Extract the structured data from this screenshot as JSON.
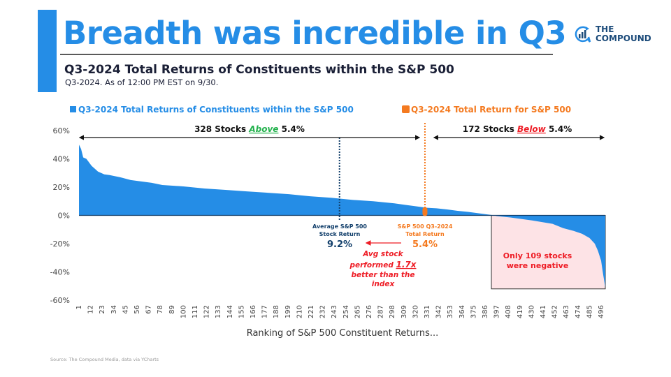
{
  "header": {
    "title": "Breadth was incredible in Q3",
    "subtitle": "Q3-2024 Total Returns of Constituents within the S&P 500",
    "subsubtitle": "Q3-2024. As of 12:00 PM EST on 9/30.",
    "logo_line1": "THE",
    "logo_line2": "COMPOUND"
  },
  "footer": {
    "source": "Source: The Compound Media, data via YCharts"
  },
  "colors": {
    "primary": "#258DE6",
    "orange": "#F47A20",
    "red": "#EE1C25",
    "green": "#22B14C",
    "navy": "#123F6B",
    "negative_box": "#FDE3E6"
  },
  "chart_data": {
    "type": "area",
    "title": "Q3-2024 Total Returns of Constituents within the S&P 500",
    "legend": [
      {
        "label": "Q3-2024 Total Returns of Constituents within the S&P 500",
        "color": "#258DE6"
      },
      {
        "label": "Q3-2024 Total Return for S&P 500",
        "color": "#F47A20"
      }
    ],
    "legend_position": "top",
    "xlabel": "Ranking of S&P 500 Constituent Returns...",
    "ylabel": "",
    "xlim": [
      1,
      500
    ],
    "ylim": [
      -60,
      60
    ],
    "y_ticks": [
      60,
      40,
      20,
      0,
      -20,
      -40,
      -60
    ],
    "y_tick_labels": [
      "60%",
      "40%",
      "20%",
      "0%",
      "-20%",
      "-40%",
      "-60%"
    ],
    "x_tick_labels": [
      "1",
      "12",
      "23",
      "34",
      "45",
      "56",
      "67",
      "78",
      "89",
      "100",
      "111",
      "122",
      "133",
      "144",
      "155",
      "166",
      "177",
      "188",
      "199",
      "210",
      "221",
      "232",
      "243",
      "254",
      "265",
      "276",
      "287",
      "298",
      "309",
      "320",
      "331",
      "342",
      "353",
      "364",
      "375",
      "386",
      "397",
      "408",
      "419",
      "430",
      "441",
      "452",
      "463",
      "474",
      "485",
      "496"
    ],
    "series": [
      {
        "name": "Q3-2024 Total Returns of Constituents within the S&P 500",
        "x": [
          1,
          3,
          5,
          8,
          10,
          13,
          16,
          19,
          22,
          25,
          30,
          40,
          50,
          60,
          70,
          80,
          90,
          100,
          120,
          140,
          160,
          180,
          200,
          220,
          240,
          260,
          280,
          300,
          310,
          320,
          331,
          340,
          350,
          360,
          370,
          380,
          390,
          395,
          397,
          410,
          430,
          450,
          460,
          470,
          478,
          485,
          490,
          493,
          496,
          498,
          500
        ],
        "values": [
          50,
          47,
          41,
          40,
          38,
          35,
          33,
          31,
          30,
          29,
          28.5,
          27,
          25,
          24,
          23,
          21.5,
          21,
          20.5,
          19,
          18,
          17,
          16,
          15,
          13.5,
          12.5,
          11,
          10,
          8.5,
          7.5,
          6.5,
          5.4,
          5,
          4.2,
          3.2,
          2.5,
          1.5,
          0.5,
          0,
          -0.5,
          -1.5,
          -3.5,
          -6,
          -9,
          -11,
          -13,
          -16,
          -20,
          -25,
          -32,
          -42,
          -51
        ]
      }
    ],
    "reference_lines": [
      {
        "name": "Average S&P 500 Stock Return",
        "value_pct": 9.2,
        "rank": 248,
        "color": "#123F6B"
      },
      {
        "name": "S&P 500 Q3-2024 Total Return",
        "value_pct": 5.4,
        "rank": 329,
        "color": "#F47A20"
      }
    ],
    "annotations": {
      "above": {
        "count_text": "328 Stocks ",
        "keyword": "Above",
        "value": " 5.4%"
      },
      "below": {
        "count_text": "172 Stocks ",
        "keyword": "Below",
        "value": " 5.4%"
      },
      "avg_label_1": "Average S&P 500",
      "avg_label_2": "Stock Return",
      "avg_value": "9.2%",
      "index_label_1": "S&P 500 Q3-2024",
      "index_label_2": "Total Return",
      "index_value": "5.4%",
      "compare_1": "Avg stock",
      "compare_2a": "performed ",
      "compare_2b": "1.7x",
      "compare_3": "better than the",
      "compare_4": "index",
      "negative_1": "Only 109 stocks",
      "negative_2": "were negative",
      "negative_start_rank": 392
    }
  }
}
